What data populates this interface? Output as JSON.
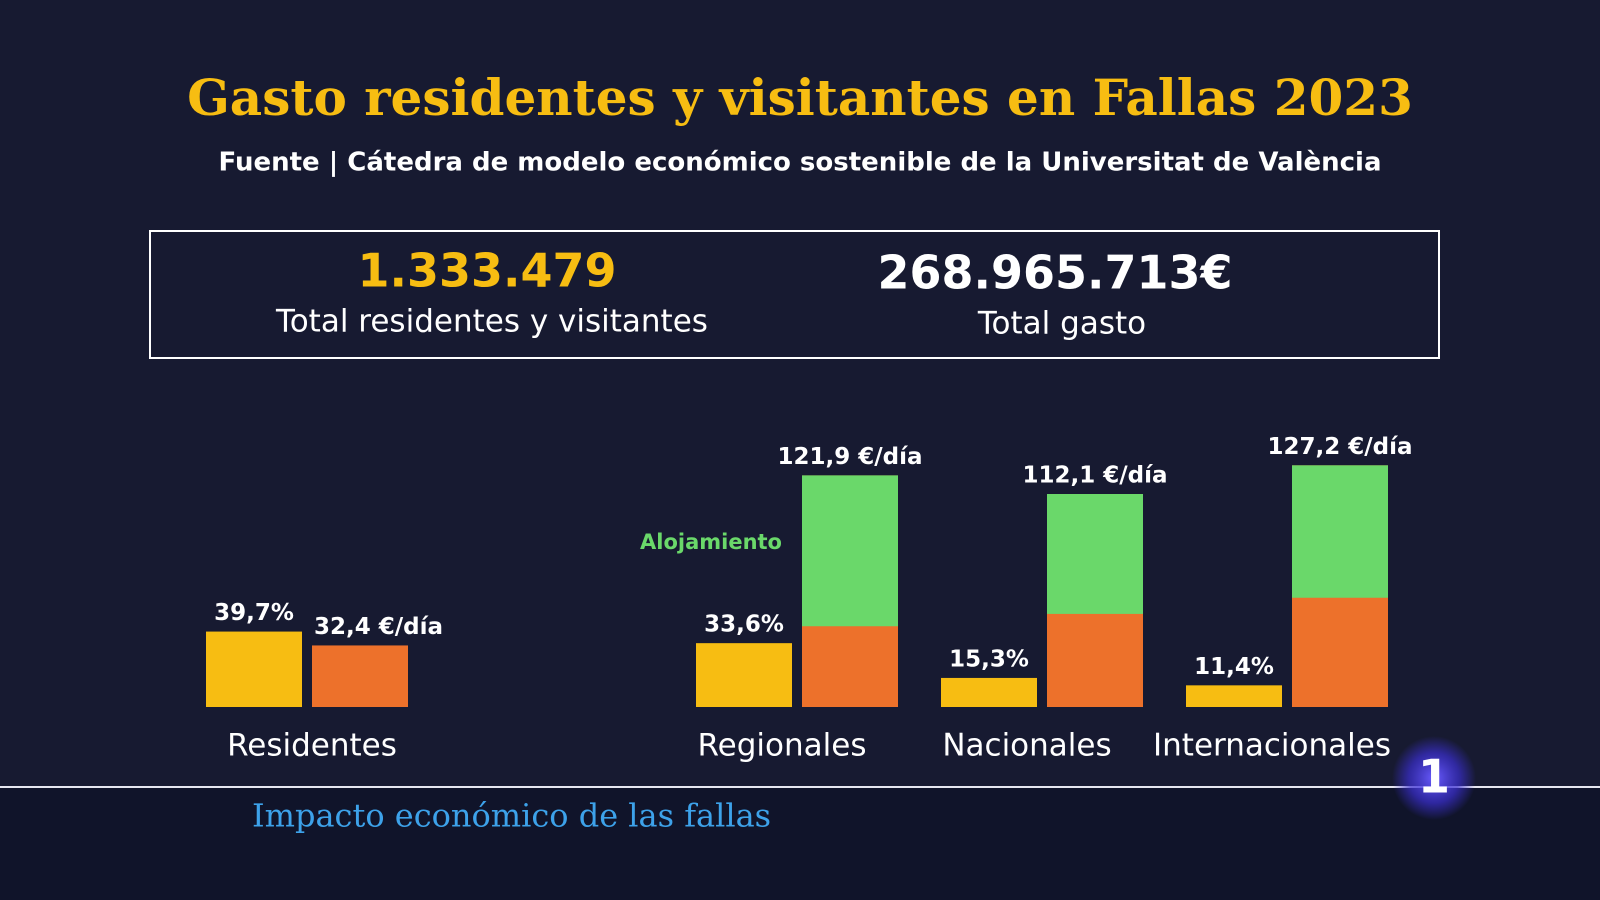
{
  "chart_data": {
    "type": "bar",
    "title": "Gasto residentes y visitantes en Fallas 2023",
    "subtitle": "Fuente | Cátedra de modelo económico sostenible de la Universitat de València",
    "categories": [
      "Residentes",
      "Regionales",
      "Nacionales",
      "Internacionales"
    ],
    "series": [
      {
        "color": "#f7bd12",
        "values": [
          39.7,
          33.6,
          15.3,
          11.4
        ],
        "value_labels": [
          "39,7%",
          "33,6%",
          "15,3%",
          "11,4%"
        ]
      },
      {
        "color": "#ed712b",
        "values": [
          32.4,
          121.9,
          112.1,
          127.2
        ],
        "value_labels": [
          "32,4 €/día",
          "121,9 €/día",
          "112,1 €/día",
          "127,2 €/día"
        ]
      },
      {
        "name": "Alojamiento",
        "color": "#6ad86a",
        "values": [
          null,
          79.4,
          63.1,
          69.7
        ]
      }
    ],
    "ylim": [
      0,
      130
    ]
  },
  "stats": [
    {
      "value": "1.333.479",
      "label": "Total residentes y visitantes"
    },
    {
      "value": "268.965.713€",
      "label": "Total gasto"
    }
  ],
  "caption": "Impacto económico de las fallas",
  "logo": "1"
}
